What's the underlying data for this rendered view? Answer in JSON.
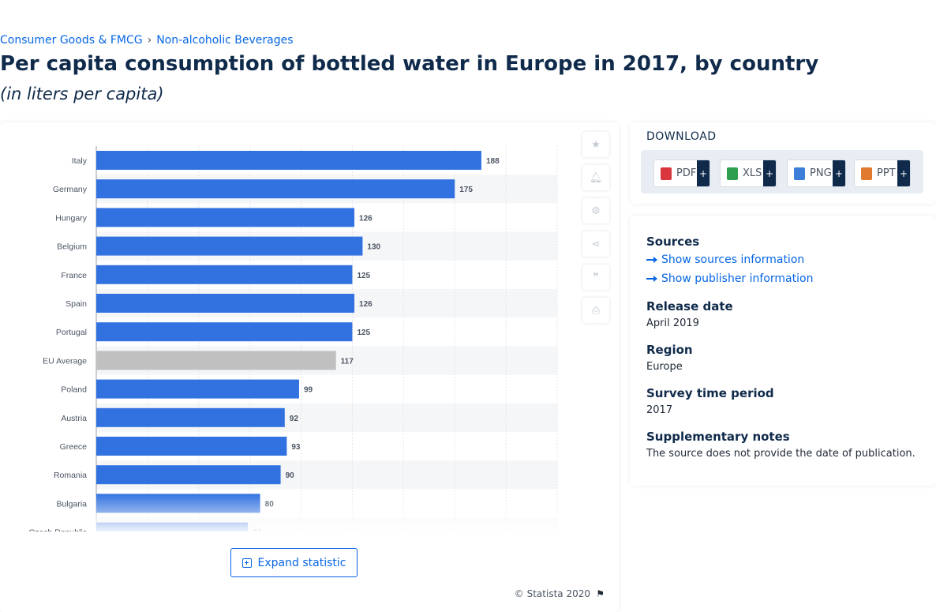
{
  "breadcrumb": [
    "Consumer Goods & FMCG",
    "Non-alcoholic Beverages"
  ],
  "title": "Per capita consumption of bottled water in Europe in 2017, by country",
  "subtitle": "(in liters per capita)",
  "expand_label": "Expand statistic",
  "copyright": "© Statista 2020",
  "colors": {
    "bar": "#3272e0",
    "highlight": "#c0c0c0",
    "accent": "#0666e5",
    "navy": "#0f2a4a"
  },
  "toolbar_icons": [
    "star-icon",
    "bell-icon",
    "gear-icon",
    "share-icon",
    "quote-icon",
    "print-icon"
  ],
  "download": {
    "title": "DOWNLOAD",
    "buttons": [
      {
        "label": "PDF",
        "icon": "pdf-file-icon",
        "color": "#d9363e"
      },
      {
        "label": "XLS",
        "icon": "xls-file-icon",
        "color": "#2e9e4f"
      },
      {
        "label": "PNG",
        "icon": "png-file-icon",
        "color": "#3d7fd8"
      },
      {
        "label": "PPT",
        "icon": "ppt-file-icon",
        "color": "#e07a2e"
      }
    ],
    "plus": "+"
  },
  "info": {
    "sources_heading": "Sources",
    "show_sources": "Show sources information",
    "show_publisher": "Show publisher information",
    "release_heading": "Release date",
    "release_value": "April 2019",
    "region_heading": "Region",
    "region_value": "Europe",
    "survey_heading": "Survey time period",
    "survey_value": "2017",
    "notes_heading": "Supplementary notes",
    "notes_value": "The source does not provide the date of publication."
  },
  "chart_data": {
    "type": "bar",
    "orientation": "horizontal",
    "categories": [
      "Italy",
      "Germany",
      "Hungary",
      "Belgium",
      "France",
      "Spain",
      "Portugal",
      "EU Average",
      "Poland",
      "Austria",
      "Greece",
      "Romania",
      "Bulgaria",
      "Czech Republic"
    ],
    "values": [
      188,
      175,
      126,
      130,
      125,
      126,
      125,
      117,
      99,
      92,
      93,
      90,
      80,
      74
    ],
    "highlight": "EU Average",
    "xlim": [
      0,
      225
    ],
    "grid": true,
    "legend": "none"
  }
}
